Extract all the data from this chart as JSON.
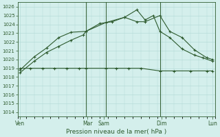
{
  "xlabel": "Pression niveau de la mer( hPa )",
  "bg_color": "#d4efec",
  "grid_color": "#b0d8d4",
  "line_color": "#2d5a2d",
  "ylim": [
    1013.5,
    1026.5
  ],
  "yticks": [
    1014,
    1015,
    1016,
    1017,
    1018,
    1019,
    1020,
    1021,
    1022,
    1023,
    1024,
    1025,
    1026
  ],
  "xlim": [
    0,
    24
  ],
  "xtick_positions": [
    0.3,
    8.5,
    10.5,
    17.5,
    23.7
  ],
  "xtick_labels": [
    "Ven",
    "Mar",
    "Sam",
    "Dim",
    "Lun"
  ],
  "vline_positions": [
    8.3,
    10.7,
    17.3,
    24.0
  ],
  "line1_x": [
    0.3,
    1.5,
    3.0,
    4.5,
    6.0,
    7.5,
    8.3,
    10.7,
    12.0,
    13.5,
    15.0,
    17.3,
    19.0,
    21.0,
    23.0,
    23.7
  ],
  "line1_y": [
    1019.0,
    1019.0,
    1019.0,
    1019.0,
    1019.0,
    1019.0,
    1019.0,
    1019.0,
    1019.0,
    1019.0,
    1019.0,
    1018.7,
    1018.7,
    1018.7,
    1018.7,
    1018.7
  ],
  "line2_x": [
    0.3,
    2.0,
    3.5,
    5.0,
    6.5,
    8.0,
    8.3,
    10.0,
    11.5,
    13.0,
    14.5,
    15.5,
    17.3,
    18.5,
    20.0,
    21.5,
    23.0,
    23.7
  ],
  "line2_y": [
    1018.5,
    1019.8,
    1020.8,
    1021.5,
    1022.2,
    1022.8,
    1023.2,
    1024.1,
    1024.3,
    1024.8,
    1024.3,
    1024.3,
    1025.0,
    1023.2,
    1022.5,
    1021.1,
    1020.2,
    1020.0
  ],
  "line3_x": [
    0.3,
    2.0,
    3.5,
    5.0,
    6.5,
    8.3,
    10.7,
    13.0,
    14.5,
    15.5,
    16.5,
    17.3,
    18.5,
    20.0,
    21.5,
    22.5,
    23.7
  ],
  "line3_y": [
    1018.8,
    1020.3,
    1021.3,
    1022.5,
    1023.1,
    1023.2,
    1024.2,
    1024.8,
    1025.65,
    1024.5,
    1025.0,
    1023.2,
    1022.5,
    1021.2,
    1020.5,
    1020.2,
    1019.8
  ]
}
